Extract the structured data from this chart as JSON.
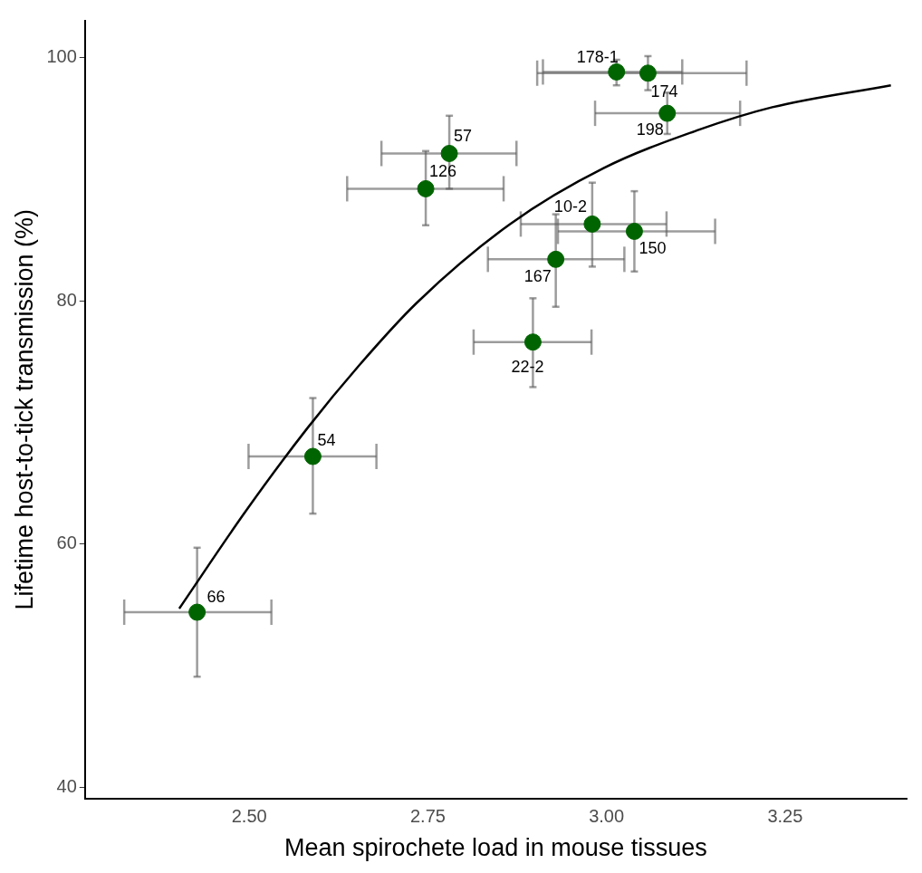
{
  "chart_data": {
    "type": "scatter",
    "xlabel": "Mean spirochete load in mouse tissues",
    "ylabel": "Lifetime host-to-tick transmission (%)",
    "xlim": [
      2.27,
      3.42
    ],
    "xticks": [
      {
        "value": 2.5,
        "label": "2.50"
      },
      {
        "value": 2.75,
        "label": "2.75"
      },
      {
        "value": 3,
        "label": "3.00"
      },
      {
        "value": 3.25,
        "label": "3.25"
      }
    ],
    "ylim": [
      39.1,
      103
    ],
    "yticks": [
      40,
      60,
      80,
      100
    ],
    "grid": false,
    "legend": false,
    "series": [
      {
        "color": "#006400",
        "marker": "circle",
        "x": [
          2.427,
          2.589,
          2.747,
          2.78,
          2.897,
          2.929,
          2.98,
          3.039,
          3.014,
          3.058,
          3.085
        ],
        "values": [
          54.4,
          67.2,
          89.2,
          92.1,
          76.6,
          83.4,
          86.3,
          85.7,
          98.8,
          98.7,
          95.4
        ],
        "xerrors": [
          [
            2.325,
            2.531
          ],
          [
            2.499,
            2.678
          ],
          [
            2.637,
            2.856
          ],
          [
            2.685,
            2.874
          ],
          [
            2.814,
            2.979
          ],
          [
            2.834,
            3.025
          ],
          [
            2.88,
            3.084
          ],
          [
            2.932,
            3.152
          ],
          [
            2.911,
            3.106
          ],
          [
            2.903,
            3.196
          ],
          [
            2.984,
            3.187
          ]
        ],
        "errors": [
          [
            49.1,
            59.7
          ],
          [
            62.5,
            72
          ],
          [
            86.2,
            92.3
          ],
          [
            89.2,
            95.2
          ],
          [
            72.9,
            80.2
          ],
          [
            79.5,
            87.1
          ],
          [
            82.8,
            89.7
          ],
          [
            82.4,
            89
          ],
          [
            97.7,
            99.8
          ],
          [
            97.3,
            100.1
          ],
          [
            93.7,
            97.1
          ]
        ]
      },
      {
        "type": "line",
        "color": "#000000",
        "marker": "none",
        "line_style": "solid",
        "x": [
          2.402,
          2.495,
          2.581,
          2.654,
          2.734,
          2.865,
          2.996,
          3.127,
          3.232,
          3.398
        ],
        "values": [
          54.7,
          62.7,
          69.5,
          74.7,
          79.8,
          86.3,
          90.9,
          94,
          95.9,
          97.7
        ]
      }
    ],
    "annotations": [
      {
        "text": "66",
        "x": 2.427,
        "y": 54.4
      },
      {
        "text": "54",
        "x": 2.589,
        "y": 67.2
      },
      {
        "text": "126",
        "x": 2.747,
        "y": 89.2
      },
      {
        "text": "57",
        "x": 2.78,
        "y": 92.1
      },
      {
        "text": "22-2",
        "x": 2.897,
        "y": 76.6
      },
      {
        "text": "167",
        "x": 2.929,
        "y": 83.4
      },
      {
        "text": "10-2",
        "x": 2.98,
        "y": 86.3
      },
      {
        "text": "150",
        "x": 3.039,
        "y": 85.7
      },
      {
        "text": "178-1",
        "x": 3.014,
        "y": 98.8
      },
      {
        "text": "174",
        "x": 3.058,
        "y": 98.7
      },
      {
        "text": "198",
        "x": 3.085,
        "y": 95.4
      }
    ]
  }
}
